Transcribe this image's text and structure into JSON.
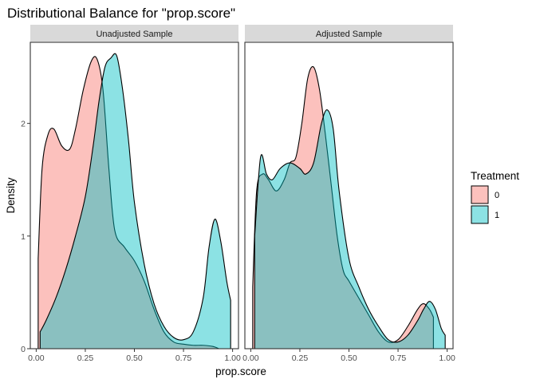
{
  "chart_data": {
    "type": "area",
    "title": "Distributional Balance for \"prop.score\"",
    "xlabel": "prop.score",
    "ylabel": "Density",
    "xlim": [
      -0.03,
      1.03
    ],
    "ylim": [
      0,
      2.72
    ],
    "x_ticks": [
      0,
      0.25,
      0.5,
      0.75,
      1
    ],
    "x_tick_labels": [
      "0.00",
      "0.25",
      "0.50",
      "0.75",
      "1.00"
    ],
    "y_ticks": [
      0,
      1,
      2
    ],
    "y_tick_labels": [
      "0",
      "1",
      "2"
    ],
    "grid": false,
    "legend": {
      "title": "Treatment",
      "position": "right",
      "entries": [
        {
          "label": "0",
          "color": "#F8766D"
        },
        {
          "label": "1",
          "color": "#00BFC4"
        }
      ]
    },
    "colors": {
      "0": "#F8766D",
      "1": "#00BFC4",
      "strip": "#d9d9d9"
    },
    "panels": [
      {
        "strip_label": "Unadjusted Sample",
        "series": [
          {
            "name": "0",
            "x": [
              0.01,
              0.03,
              0.06,
              0.09,
              0.13,
              0.17,
              0.2,
              0.24,
              0.28,
              0.31,
              0.34,
              0.37,
              0.4,
              0.45,
              0.5,
              0.55,
              0.6,
              0.65,
              0.7,
              0.75,
              0.8,
              0.85,
              0.9,
              0.93
            ],
            "y": [
              0.8,
              1.6,
              1.9,
              1.95,
              1.8,
              1.77,
              1.95,
              2.3,
              2.55,
              2.57,
              2.3,
              1.6,
              1.05,
              0.9,
              0.78,
              0.6,
              0.35,
              0.15,
              0.06,
              0.04,
              0.03,
              0.03,
              0.02,
              0.0
            ]
          },
          {
            "name": "1",
            "x": [
              0.02,
              0.05,
              0.1,
              0.15,
              0.2,
              0.25,
              0.29,
              0.32,
              0.35,
              0.38,
              0.41,
              0.44,
              0.47,
              0.5,
              0.55,
              0.6,
              0.65,
              0.7,
              0.75,
              0.8,
              0.85,
              0.88,
              0.91,
              0.94,
              0.97,
              0.99
            ],
            "y": [
              0.15,
              0.25,
              0.45,
              0.7,
              1.0,
              1.35,
              1.8,
              2.2,
              2.5,
              2.58,
              2.6,
              2.3,
              1.85,
              1.3,
              0.75,
              0.4,
              0.2,
              0.1,
              0.08,
              0.15,
              0.45,
              0.9,
              1.15,
              0.95,
              0.6,
              0.43
            ]
          }
        ]
      },
      {
        "strip_label": "Adjusted Sample",
        "series": [
          {
            "name": "0",
            "x": [
              0.01,
              0.03,
              0.06,
              0.09,
              0.13,
              0.17,
              0.2,
              0.23,
              0.26,
              0.29,
              0.32,
              0.35,
              0.38,
              0.41,
              0.44,
              0.47,
              0.5,
              0.55,
              0.6,
              0.65,
              0.7,
              0.75,
              0.8,
              0.85,
              0.88,
              0.91,
              0.93
            ],
            "y": [
              0.55,
              1.4,
              1.55,
              1.5,
              1.4,
              1.5,
              1.65,
              1.7,
              2.0,
              2.4,
              2.5,
              2.3,
              1.9,
              1.45,
              1.0,
              0.7,
              0.6,
              0.45,
              0.3,
              0.15,
              0.06,
              0.08,
              0.2,
              0.35,
              0.4,
              0.35,
              0.28
            ]
          },
          {
            "name": "1",
            "x": [
              0.02,
              0.05,
              0.08,
              0.11,
              0.15,
              0.2,
              0.25,
              0.28,
              0.32,
              0.36,
              0.39,
              0.42,
              0.45,
              0.5,
              0.55,
              0.6,
              0.65,
              0.7,
              0.75,
              0.8,
              0.85,
              0.88,
              0.91,
              0.94,
              0.97,
              0.99
            ],
            "y": [
              1.0,
              1.7,
              1.55,
              1.5,
              1.6,
              1.65,
              1.6,
              1.55,
              1.65,
              2.0,
              2.12,
              1.95,
              1.4,
              0.8,
              0.55,
              0.35,
              0.2,
              0.08,
              0.06,
              0.12,
              0.25,
              0.35,
              0.42,
              0.35,
              0.18,
              0.12
            ]
          }
        ]
      }
    ]
  }
}
